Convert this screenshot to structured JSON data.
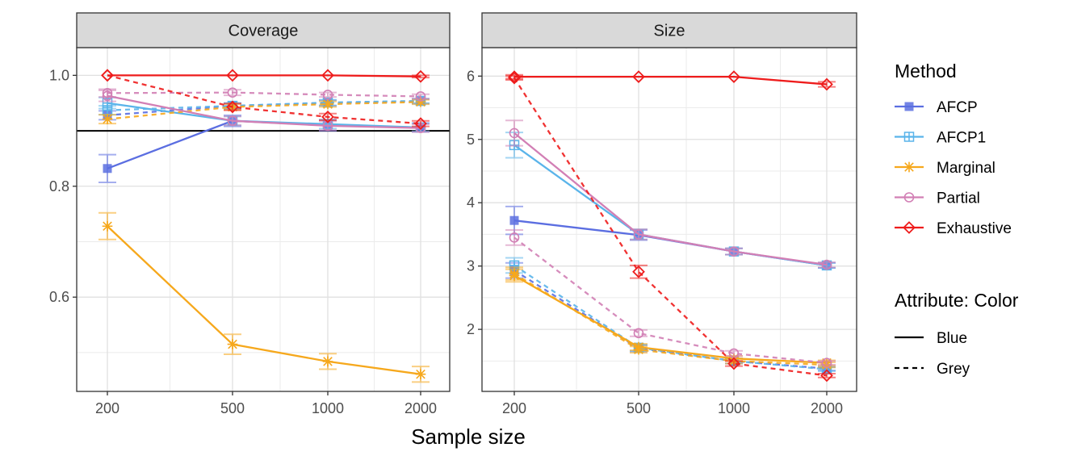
{
  "chart_data": {
    "type": "line",
    "xlabel": "Sample size",
    "x": [
      200,
      500,
      1000,
      2000
    ],
    "x_tick_labels": [
      "200",
      "500",
      "1000",
      "2000"
    ],
    "x_scale": "log",
    "colors": {
      "AFCP": "#5b6ee1",
      "AFCP1": "#5ab4ea",
      "Marginal": "#f6a81c",
      "Partial": "#d27fb5",
      "Exhaustive": "#ee1c1c"
    },
    "marker_shapes": {
      "AFCP": "square",
      "AFCP1": "boxplus",
      "Marginal": "asterisk",
      "Partial": "circle",
      "Exhaustive": "diamond"
    },
    "legend": {
      "method_title": "Method",
      "methods": [
        "AFCP",
        "AFCP1",
        "Marginal",
        "Partial",
        "Exhaustive"
      ],
      "attribute_title": "Attribute: Color",
      "attributes": [
        {
          "label": "Blue",
          "linetype": "solid"
        },
        {
          "label": "Grey",
          "linetype": "dashed"
        }
      ]
    },
    "panels": [
      {
        "title": "Coverage",
        "ylim": [
          0.43,
          1.05
        ],
        "y_ticks": [
          0.6,
          0.8,
          1.0
        ],
        "y_tick_labels": [
          "0.6",
          "0.8",
          "1.0"
        ],
        "reference_line": 0.9,
        "series": [
          {
            "method": "AFCP",
            "attribute": "Blue",
            "values": [
              0.832,
              0.918,
              0.91,
              0.906
            ],
            "err": [
              0.025,
              0.01,
              0.01,
              0.008
            ]
          },
          {
            "method": "AFCP",
            "attribute": "Grey",
            "values": [
              0.928,
              0.945,
              0.95,
              0.953
            ],
            "err": [
              0.008,
              0.005,
              0.005,
              0.004
            ]
          },
          {
            "method": "AFCP1",
            "attribute": "Blue",
            "values": [
              0.95,
              0.918,
              0.912,
              0.906
            ],
            "err": [
              0.01,
              0.008,
              0.008,
              0.007
            ]
          },
          {
            "method": "AFCP1",
            "attribute": "Grey",
            "values": [
              0.937,
              0.945,
              0.951,
              0.954
            ],
            "err": [
              0.008,
              0.005,
              0.005,
              0.004
            ]
          },
          {
            "method": "Marginal",
            "attribute": "Blue",
            "values": [
              0.728,
              0.515,
              0.484,
              0.461
            ],
            "err": [
              0.024,
              0.018,
              0.014,
              0.014
            ]
          },
          {
            "method": "Marginal",
            "attribute": "Grey",
            "values": [
              0.921,
              0.943,
              0.948,
              0.952
            ],
            "err": [
              0.008,
              0.005,
              0.005,
              0.004
            ]
          },
          {
            "method": "Partial",
            "attribute": "Blue",
            "values": [
              0.963,
              0.918,
              0.909,
              0.905
            ],
            "err": [
              0.01,
              0.008,
              0.008,
              0.007
            ]
          },
          {
            "method": "Partial",
            "attribute": "Grey",
            "values": [
              0.968,
              0.969,
              0.965,
              0.962
            ],
            "err": [
              0.007,
              0.005,
              0.004,
              0.004
            ]
          },
          {
            "method": "Exhaustive",
            "attribute": "Blue",
            "values": [
              1.0,
              1.0,
              1.0,
              0.998
            ],
            "err": [
              0.0,
              0.0,
              0.0,
              0.002
            ]
          },
          {
            "method": "Exhaustive",
            "attribute": "Grey",
            "values": [
              1.0,
              0.943,
              0.925,
              0.913
            ],
            "err": [
              0.0,
              0.006,
              0.006,
              0.005
            ]
          }
        ]
      },
      {
        "title": "Size",
        "ylim": [
          1.02,
          6.45
        ],
        "y_ticks": [
          2,
          3,
          4,
          5,
          6
        ],
        "y_tick_labels": [
          "2",
          "3",
          "4",
          "5",
          "6"
        ],
        "reference_line": null,
        "series": [
          {
            "method": "AFCP",
            "attribute": "Blue",
            "values": [
              3.72,
              3.49,
              3.23,
              3.01
            ],
            "err": [
              0.22,
              0.08,
              0.05,
              0.04
            ]
          },
          {
            "method": "AFCP",
            "attribute": "Grey",
            "values": [
              2.93,
              1.7,
              1.5,
              1.38
            ],
            "err": [
              0.12,
              0.05,
              0.04,
              0.03
            ]
          },
          {
            "method": "AFCP1",
            "attribute": "Blue",
            "values": [
              4.91,
              3.5,
              3.23,
              3.01
            ],
            "err": [
              0.2,
              0.08,
              0.05,
              0.04
            ]
          },
          {
            "method": "AFCP1",
            "attribute": "Grey",
            "values": [
              3.01,
              1.71,
              1.5,
              1.37
            ],
            "err": [
              0.12,
              0.05,
              0.04,
              0.03
            ]
          },
          {
            "method": "Marginal",
            "attribute": "Blue",
            "values": [
              2.85,
              1.72,
              1.54,
              1.47
            ],
            "err": [
              0.1,
              0.05,
              0.04,
              0.04
            ]
          },
          {
            "method": "Marginal",
            "attribute": "Grey",
            "values": [
              2.88,
              1.68,
              1.5,
              1.44
            ],
            "err": [
              0.1,
              0.05,
              0.04,
              0.04
            ]
          },
          {
            "method": "Partial",
            "attribute": "Blue",
            "values": [
              5.1,
              3.5,
              3.23,
              3.02
            ],
            "err": [
              0.2,
              0.08,
              0.05,
              0.04
            ]
          },
          {
            "method": "Partial",
            "attribute": "Grey",
            "values": [
              3.45,
              1.94,
              1.62,
              1.47
            ],
            "err": [
              0.12,
              0.05,
              0.04,
              0.03
            ]
          },
          {
            "method": "Exhaustive",
            "attribute": "Blue",
            "values": [
              5.99,
              5.99,
              5.99,
              5.87
            ],
            "err": [
              0.03,
              0.0,
              0.0,
              0.04
            ]
          },
          {
            "method": "Exhaustive",
            "attribute": "Grey",
            "values": [
              5.97,
              2.91,
              1.46,
              1.27
            ],
            "err": [
              0.03,
              0.1,
              0.04,
              0.03
            ]
          }
        ]
      }
    ]
  }
}
